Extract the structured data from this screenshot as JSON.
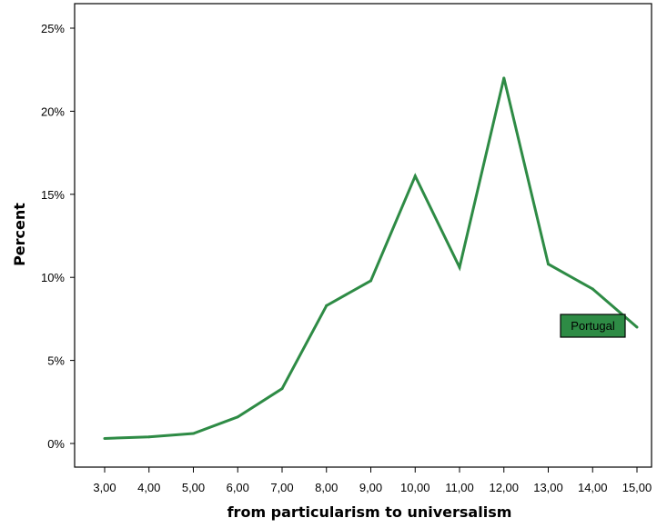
{
  "chart_data": {
    "type": "line",
    "xlabel": "from particularism to universalism",
    "ylabel": "Percent",
    "x": [
      "3,00",
      "4,00",
      "5,00",
      "6,00",
      "7,00",
      "8,00",
      "9,00",
      "10,00",
      "11,00",
      "12,00",
      "13,00",
      "14,00",
      "15,00"
    ],
    "y_ticks": [
      "0%",
      "5%",
      "10%",
      "15%",
      "20%",
      "25%"
    ],
    "ylim": [
      0,
      25
    ],
    "series": [
      {
        "name": "Portugal",
        "color": "#2e8b45",
        "values": [
          0.3,
          0.4,
          0.6,
          1.6,
          3.3,
          8.3,
          9.8,
          16.1,
          10.6,
          22.0,
          10.8,
          9.3,
          7.0
        ]
      }
    ],
    "grid": false
  }
}
